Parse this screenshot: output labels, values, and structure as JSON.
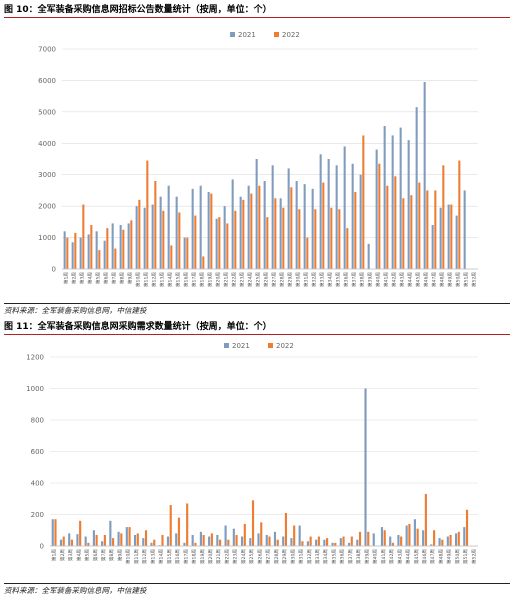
{
  "figure1": {
    "caption": "图 10：全军装备采购信息网招标公告数量统计（按周，单位：个）",
    "source": "资料来源：全军装备采购信息网，中信建投"
  },
  "figure2": {
    "caption": "图 11：全军装备采购信息网采购需求数量统计（按周，单位：个）",
    "source": "资料来源：全军装备采购信息网，中信建投"
  },
  "colors": {
    "s2021": "#7f9bbd",
    "s2022": "#ed7d31",
    "grid": "#dcdcdc"
  },
  "chart_data": [
    {
      "type": "bar",
      "title": "",
      "ylim": [
        0,
        7000
      ],
      "yticks": [
        0,
        1000,
        2000,
        3000,
        4000,
        5000,
        6000,
        7000
      ],
      "grid": true,
      "legend": "top-center",
      "categories": [
        "第1周",
        "第2周",
        "第3周",
        "第4周",
        "第5周",
        "第6周",
        "第7周",
        "第8周",
        "第9周",
        "第10周",
        "第11周",
        "第12周",
        "第13周",
        "第14周",
        "第15周",
        "第16周",
        "第17周",
        "第18周",
        "第19周",
        "第20周",
        "第21周",
        "第22周",
        "第23周",
        "第24周",
        "第25周",
        "第26周",
        "第27周",
        "第28周",
        "第29周",
        "第30周",
        "第31周",
        "第32周",
        "第33周",
        "第34周",
        "第35周",
        "第36周",
        "第37周",
        "第38周",
        "第39周",
        "第40周",
        "第41周",
        "第42周",
        "第43周",
        "第44周",
        "第45周",
        "第46周",
        "第47周",
        "第48周",
        "第49周",
        "第50周",
        "第51周",
        "第52周"
      ],
      "series": [
        {
          "name": "2021",
          "values": [
            1200,
            850,
            1000,
            1100,
            1200,
            900,
            1450,
            1400,
            1450,
            2000,
            1950,
            2050,
            2300,
            2650,
            2300,
            1000,
            2550,
            2650,
            2450,
            1600,
            2000,
            2850,
            2300,
            2650,
            3500,
            2800,
            3300,
            2250,
            3200,
            2800,
            2700,
            2550,
            3650,
            3500,
            3300,
            3900,
            3350,
            3000,
            800,
            3800,
            4550,
            4250,
            4500,
            4100,
            5150,
            5950,
            1400,
            1950,
            2050,
            1700,
            2500,
            0
          ]
        },
        {
          "name": "2022",
          "values": [
            1000,
            1150,
            2050,
            1400,
            600,
            1300,
            650,
            1250,
            1550,
            2200,
            3450,
            2800,
            1850,
            750,
            1800,
            1000,
            1700,
            400,
            2400,
            1650,
            1450,
            1850,
            2200,
            2400,
            2650,
            1650,
            2250,
            1950,
            2600,
            1900,
            1000,
            1900,
            2750,
            1950,
            1900,
            1300,
            2450,
            4250,
            0,
            3350,
            2650,
            2950,
            2250,
            2350,
            2750,
            2500,
            2500,
            3300,
            2050,
            3450,
            0,
            0
          ]
        }
      ]
    },
    {
      "type": "bar",
      "title": "",
      "ylim": [
        0,
        1200
      ],
      "yticks": [
        0,
        200,
        400,
        600,
        800,
        1000,
        1200
      ],
      "grid": true,
      "legend": "top-center",
      "categories": [
        "第1周",
        "第2周",
        "第3周",
        "第4周",
        "第5周",
        "第6周",
        "第7周",
        "第8周",
        "第9周",
        "第10周",
        "第11周",
        "第12周",
        "第13周",
        "第14周",
        "第15周",
        "第16周",
        "第17周",
        "第18周",
        "第19周",
        "第20周",
        "第21周",
        "第22周",
        "第23周",
        "第24周",
        "第25周",
        "第26周",
        "第27周",
        "第28周",
        "第29周",
        "第30周",
        "第31周",
        "第32周",
        "第33周",
        "第34周",
        "第35周",
        "第36周",
        "第37周",
        "第38周",
        "第39周",
        "第40周",
        "第41周",
        "第42周",
        "第43周",
        "第44周",
        "第45周",
        "第46周",
        "第47周",
        "第48周",
        "第49周",
        "第50周",
        "第51周",
        "第52周"
      ],
      "series": [
        {
          "name": "2021",
          "values": [
            170,
            40,
            80,
            75,
            60,
            100,
            30,
            160,
            90,
            120,
            70,
            50,
            20,
            5,
            60,
            80,
            20,
            70,
            90,
            60,
            70,
            130,
            110,
            60,
            50,
            80,
            70,
            90,
            60,
            50,
            130,
            30,
            40,
            40,
            20,
            50,
            20,
            40,
            1000,
            80,
            120,
            60,
            70,
            130,
            170,
            100,
            10,
            50,
            60,
            80,
            120,
            0
          ]
        },
        {
          "name": "2022",
          "values": [
            170,
            60,
            40,
            160,
            20,
            70,
            70,
            50,
            80,
            120,
            80,
            100,
            40,
            70,
            260,
            180,
            270,
            20,
            70,
            80,
            40,
            40,
            70,
            140,
            290,
            150,
            60,
            40,
            210,
            130,
            30,
            60,
            60,
            50,
            20,
            60,
            60,
            90,
            90,
            0,
            100,
            20,
            60,
            140,
            110,
            330,
            100,
            40,
            70,
            90,
            230,
            0
          ]
        }
      ]
    }
  ]
}
